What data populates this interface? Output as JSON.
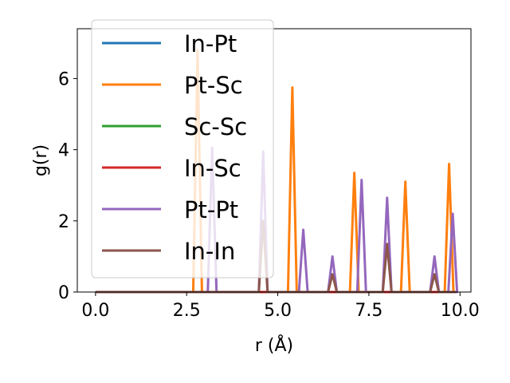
{
  "chart_data": {
    "type": "line",
    "xlabel": "r (Å)",
    "ylabel": "g(r)",
    "xlim": [
      -0.5,
      10.3
    ],
    "ylim": [
      0,
      7.4
    ],
    "xticks": [
      0.0,
      2.5,
      5.0,
      7.5,
      10.0
    ],
    "xtick_labels": [
      "0.0",
      "2.5",
      "5.0",
      "7.5",
      "10.0"
    ],
    "yticks": [
      0,
      2,
      4,
      6
    ],
    "ytick_labels": [
      "0",
      "2",
      "4",
      "6"
    ],
    "grid": false,
    "legend_position": "top-left",
    "peak_half_width": 0.12,
    "series": [
      {
        "name": "In-Pt",
        "color": "#1f77b4",
        "peaks": []
      },
      {
        "name": "Pt-Sc",
        "color": "#ff7f0e",
        "peaks": [
          [
            2.8,
            6.8
          ],
          [
            5.4,
            5.75
          ],
          [
            7.1,
            3.35
          ],
          [
            8.5,
            3.1
          ],
          [
            9.7,
            3.6
          ]
        ]
      },
      {
        "name": "Sc-Sc",
        "color": "#2ca02c",
        "peaks": []
      },
      {
        "name": "In-Sc",
        "color": "#d62728",
        "peaks": []
      },
      {
        "name": "Pt-Pt",
        "color": "#9467bd",
        "peaks": [
          [
            3.2,
            4.05
          ],
          [
            4.6,
            3.95
          ],
          [
            5.7,
            1.75
          ],
          [
            6.5,
            1.0
          ],
          [
            7.3,
            3.15
          ],
          [
            8.0,
            2.65
          ],
          [
            9.3,
            1.0
          ],
          [
            9.8,
            2.2
          ]
        ]
      },
      {
        "name": "In-In",
        "color": "#8c564b",
        "peaks": [
          [
            4.6,
            2.0
          ],
          [
            6.5,
            0.5
          ],
          [
            8.0,
            1.35
          ],
          [
            9.3,
            0.5
          ]
        ]
      }
    ],
    "x_start": 0.0,
    "x_end": 9.9
  }
}
